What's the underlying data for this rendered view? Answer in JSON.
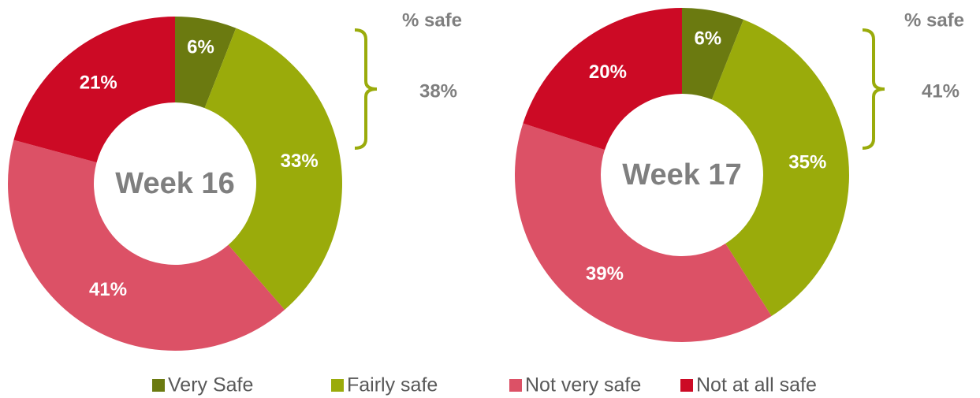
{
  "legend": {
    "categories": [
      "Very Safe",
      "Fairly safe",
      "Not very safe",
      "Not at all safe"
    ],
    "colors": [
      "#6b7a10",
      "#9aab0b",
      "#dc5166",
      "#cc0a25"
    ]
  },
  "chart_data": [
    {
      "type": "pie",
      "donut": true,
      "center_label": "Week 16",
      "values": [
        6,
        33,
        41,
        21
      ],
      "value_labels": [
        "6%",
        "33%",
        "41%",
        "21%"
      ],
      "annotations": [
        "% safe",
        "38%"
      ]
    },
    {
      "type": "pie",
      "donut": true,
      "center_label": "Week 17",
      "values": [
        6,
        35,
        39,
        20
      ],
      "value_labels": [
        "6%",
        "35%",
        "39%",
        "20%"
      ],
      "annotations": [
        "% safe",
        "41%"
      ]
    }
  ]
}
